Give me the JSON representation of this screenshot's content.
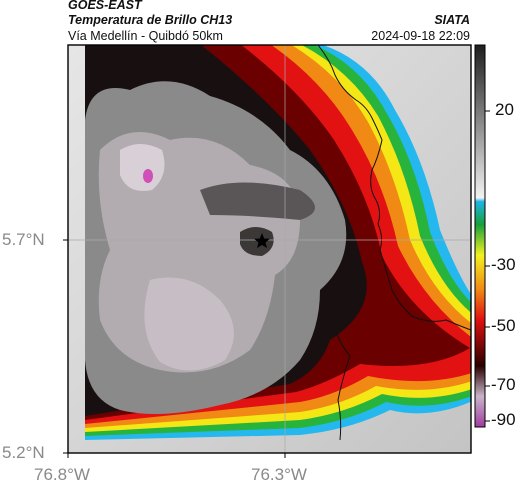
{
  "header": {
    "source": "GOES-EAST",
    "product": "Temperatura de Brillo CH13",
    "route": "Vía Medellín - Quibdó 50km",
    "agency": "SIATA",
    "datetime": "2024-09-18 22:09"
  },
  "map": {
    "lat_ticks": [
      "5.7°N",
      "5.2°N"
    ],
    "lon_ticks": [
      "76.8°W",
      "76.3°W"
    ],
    "marker": "star"
  },
  "colorbar": {
    "ticks": [
      "20",
      "-30",
      "-50",
      "-70",
      "-90"
    ],
    "stops": [
      {
        "value": 20,
        "color": "#1e1e1e"
      },
      {
        "value": -20,
        "color": "#f0f0f0"
      },
      {
        "value": -22,
        "color": "#1fb4e6"
      },
      {
        "value": -30,
        "color": "#16a03c"
      },
      {
        "value": -40,
        "color": "#f2f21e"
      },
      {
        "value": -50,
        "color": "#f08a14"
      },
      {
        "value": -60,
        "color": "#e01010"
      },
      {
        "value": -70,
        "color": "#2a0000"
      },
      {
        "value": -80,
        "color": "#c8b4c8"
      },
      {
        "value": -90,
        "color": "#a03ca0"
      }
    ]
  },
  "colors": {
    "cold_core": "#8c8c8c",
    "ring_red": "#e21212",
    "ring_yellow": "#f5e616",
    "ring_cyan": "#24b8ee",
    "warm_ground": "#d2d2d2"
  }
}
